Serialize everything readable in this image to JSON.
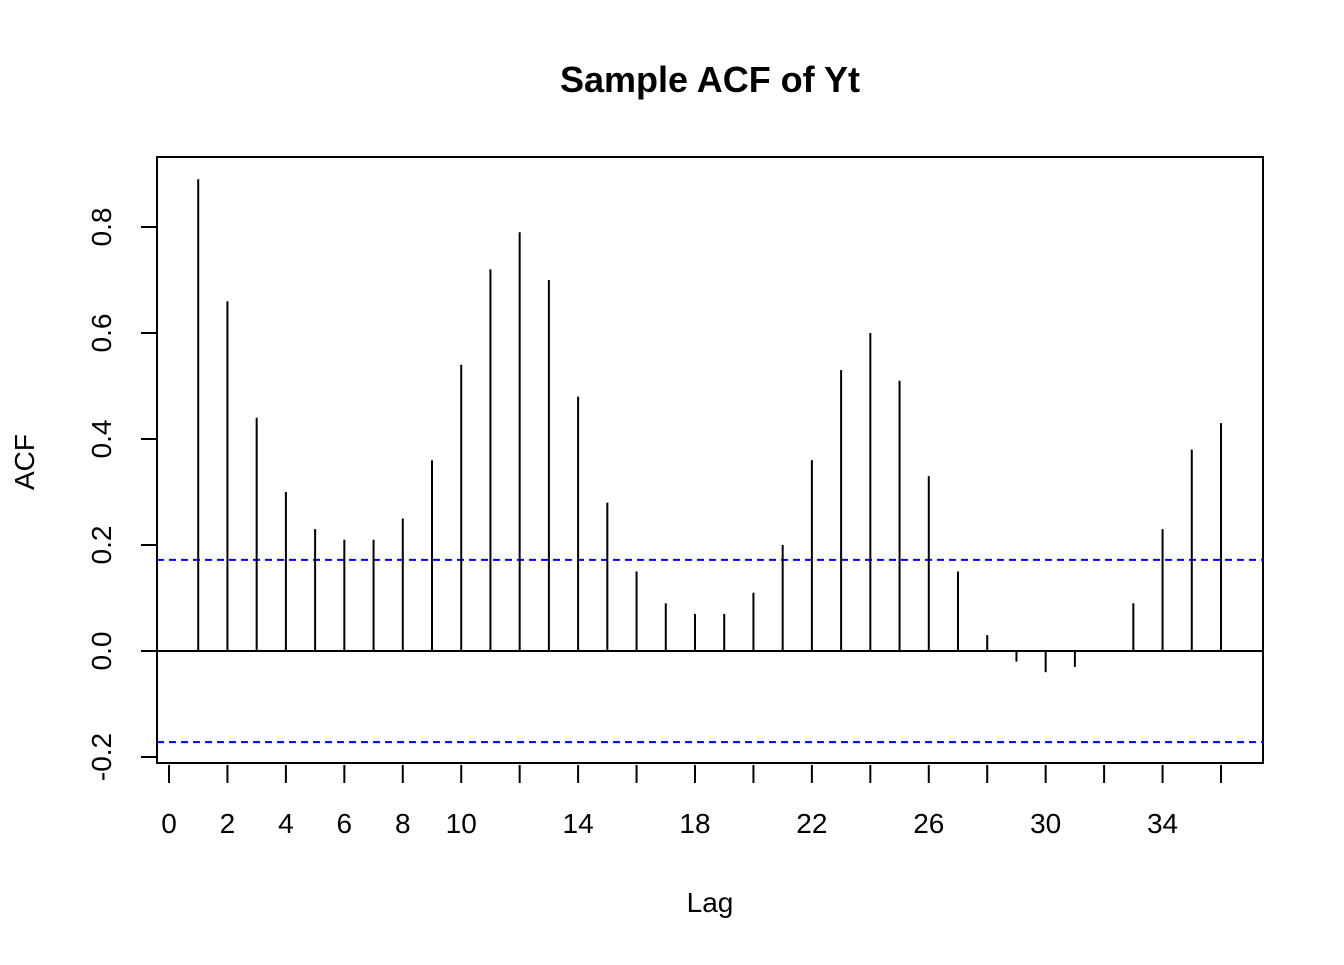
{
  "chart_data": {
    "type": "bar",
    "title": "Sample ACF of Yt",
    "xlabel": "Lag",
    "ylabel": "ACF",
    "xlim": [
      0,
      36
    ],
    "ylim": [
      -0.21,
      0.9
    ],
    "x_ticks": [
      0,
      2,
      4,
      6,
      8,
      10,
      14,
      18,
      22,
      26,
      30,
      34
    ],
    "x_tick_positions": [
      0,
      2,
      4,
      6,
      8,
      10,
      12,
      14,
      16,
      18,
      20,
      22,
      24,
      26,
      28,
      30,
      32,
      34,
      36
    ],
    "y_ticks": [
      -0.2,
      0.0,
      0.2,
      0.4,
      0.6,
      0.8
    ],
    "y_tick_labels": [
      "-0.2",
      "0.0",
      "0.2",
      "0.4",
      "0.6",
      "0.8"
    ],
    "lags": [
      1,
      2,
      3,
      4,
      5,
      6,
      7,
      8,
      9,
      10,
      11,
      12,
      13,
      14,
      15,
      16,
      17,
      18,
      19,
      20,
      21,
      22,
      23,
      24,
      25,
      26,
      27,
      28,
      29,
      30,
      31,
      32,
      33,
      34,
      35,
      36
    ],
    "values": [
      0.89,
      0.66,
      0.44,
      0.3,
      0.23,
      0.21,
      0.21,
      0.25,
      0.36,
      0.54,
      0.72,
      0.79,
      0.7,
      0.48,
      0.28,
      0.15,
      0.09,
      0.07,
      0.07,
      0.11,
      0.2,
      0.36,
      0.53,
      0.6,
      0.51,
      0.33,
      0.15,
      0.03,
      -0.02,
      -0.04,
      -0.03,
      0.0,
      0.09,
      0.23,
      0.38,
      0.43
    ],
    "confidence_bound": 0.172,
    "colors": {
      "bars": "#000000",
      "confidence": "#0000ff",
      "zero_line": "#000000"
    },
    "grid": false,
    "legend": "none"
  }
}
